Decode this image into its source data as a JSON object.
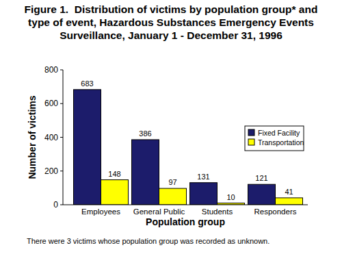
{
  "chart_data": {
    "type": "bar",
    "title": "Figure 1.  Distribution of victims by population group* and type of event, Hazardous Substances Emergency Events Surveillance, January 1 - December 31, 1996",
    "x_label": "Population group",
    "y_label": "Number of victims",
    "categories": [
      "Employees",
      "General Public",
      "Students",
      "Responders"
    ],
    "series": [
      {
        "name": "Fixed Facility",
        "color": "#1c1c6b",
        "values": [
          683,
          386,
          131,
          121
        ]
      },
      {
        "name": "Transportation",
        "color": "#ffff00",
        "values": [
          148,
          97,
          10,
          41
        ]
      }
    ],
    "ylim": [
      0,
      800
    ],
    "yticks": [
      0,
      200,
      400,
      600,
      800
    ],
    "grid": false,
    "legend": "right",
    "data_labels": true,
    "annotations": [
      "There were 3 victims whose population group was recorded as unknown."
    ]
  }
}
